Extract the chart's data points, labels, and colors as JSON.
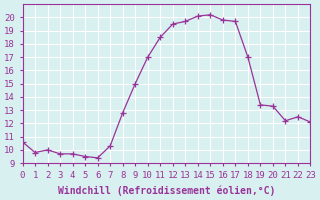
{
  "x": [
    0,
    1,
    2,
    3,
    4,
    5,
    6,
    7,
    8,
    9,
    10,
    11,
    12,
    13,
    14,
    15,
    16,
    17,
    18,
    19,
    20,
    21,
    22,
    23
  ],
  "y": [
    10.6,
    9.8,
    10.0,
    9.7,
    9.7,
    9.5,
    9.4,
    10.3,
    12.8,
    15.0,
    17.0,
    18.5,
    19.5,
    19.7,
    20.1,
    20.2,
    19.8,
    19.7,
    17.0,
    13.4,
    13.3,
    12.2,
    12.5,
    12.1
  ],
  "line_color": "#993399",
  "marker": "+",
  "bg_color": "#d8f0f0",
  "grid_color": "#ffffff",
  "xlabel": "Windchill (Refroidissement éolien,°C)",
  "ylim": [
    9,
    21
  ],
  "xlim": [
    0,
    23
  ],
  "yticks": [
    9,
    10,
    11,
    12,
    13,
    14,
    15,
    16,
    17,
    18,
    19,
    20
  ],
  "xticks": [
    0,
    1,
    2,
    3,
    4,
    5,
    6,
    7,
    8,
    9,
    10,
    11,
    12,
    13,
    14,
    15,
    16,
    17,
    18,
    19,
    20,
    21,
    22,
    23
  ],
  "tick_fontsize": 6.5,
  "xlabel_fontsize": 7.0
}
